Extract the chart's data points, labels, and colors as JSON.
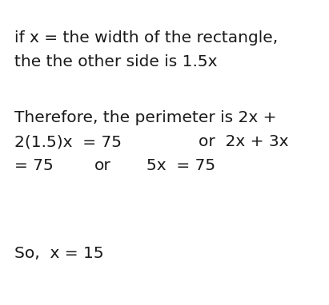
{
  "background_color": "#ffffff",
  "fig_width": 4.11,
  "fig_height": 3.82,
  "dpi": 100,
  "text_color": "#1a1a1a",
  "font_family": "DejaVu Sans",
  "fontsize": 14.5,
  "lines": [
    {
      "text": "if x = the width of the rectangle,",
      "xpx": 18,
      "ypx": 38
    },
    {
      "text": "the the other side is 1.5x",
      "xpx": 18,
      "ypx": 68
    },
    {
      "text": "Therefore, the perimeter is 2x +",
      "xpx": 18,
      "ypx": 138
    },
    {
      "text": "2(1.5)x  = 75",
      "xpx": 18,
      "ypx": 168
    },
    {
      "text": "or  2x + 3x",
      "xpx": 248,
      "ypx": 168
    },
    {
      "text": "= 75",
      "xpx": 18,
      "ypx": 198
    },
    {
      "text": "or",
      "xpx": 118,
      "ypx": 198
    },
    {
      "text": "5x  = 75",
      "xpx": 183,
      "ypx": 198
    },
    {
      "text": "So,  x = 15",
      "xpx": 18,
      "ypx": 308
    }
  ]
}
